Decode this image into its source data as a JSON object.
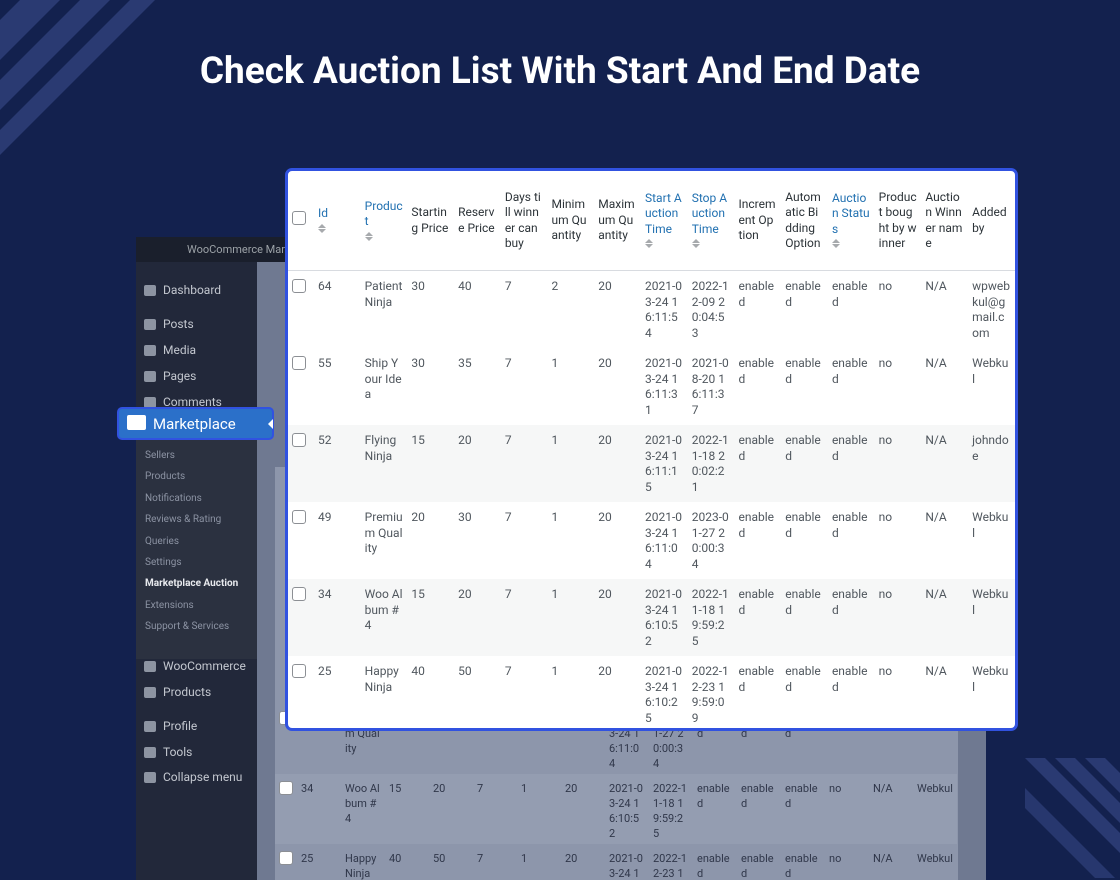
{
  "header": {
    "title": "Check Auction List With Start And End Date"
  },
  "admin_bar": {
    "site": "WooCommerce Marketplace"
  },
  "sidebar": {
    "top": [
      "Dashboard"
    ],
    "content": [
      "Posts",
      "Media",
      "Pages",
      "Comments"
    ],
    "active": "Marketplace",
    "submenu": [
      "Sellers",
      "Products",
      "Notifications",
      "Reviews & Rating",
      "Queries",
      "Settings",
      "Marketplace Auction",
      "Extensions",
      "Support & Services"
    ],
    "current_submenu": 6,
    "shop": [
      "WooCommerce",
      "Products"
    ],
    "user": [
      "Profile",
      "Tools",
      "Collapse menu"
    ]
  },
  "table": {
    "headers": [
      "Id",
      "Product",
      "Starting Price",
      "Reserve Price",
      "Days till winner can buy",
      "Minimum Quantity",
      "Maximum Quantity",
      "Start Auction Time",
      "Stop Auction Time",
      "Increment Option",
      "Automatic Bidding Option",
      "Auction Status",
      "Product bought by winner",
      "Auction Winner name",
      "Added by"
    ],
    "sortable": [
      true,
      true,
      false,
      false,
      false,
      false,
      false,
      true,
      true,
      false,
      false,
      true,
      false,
      false,
      false
    ],
    "rows": [
      [
        64,
        "Patient Ninja",
        30,
        40,
        7,
        2,
        20,
        "2021-03-24 16:11:54",
        "2022-12-09 20:04:53",
        "enabled",
        "enabled",
        "enabled",
        "no",
        "N/A",
        "wpwebkul@gmail.com"
      ],
      [
        55,
        "Ship Your Idea",
        30,
        35,
        7,
        1,
        20,
        "2021-03-24 16:11:31",
        "2021-08-20 16:11:37",
        "enabled",
        "enabled",
        "enabled",
        "no",
        "N/A",
        "Webkul"
      ],
      [
        52,
        "Flying Ninja",
        15,
        20,
        7,
        1,
        20,
        "2021-03-24 16:11:15",
        "2022-11-18 20:02:21",
        "enabled",
        "enabled",
        "enabled",
        "no",
        "N/A",
        "johndoe"
      ],
      [
        49,
        "Premium Quality",
        20,
        30,
        7,
        1,
        20,
        "2021-03-24 16:11:04",
        "2023-01-27 20:00:34",
        "enabled",
        "enabled",
        "enabled",
        "no",
        "N/A",
        "Webkul"
      ],
      [
        34,
        "Woo Album #4",
        15,
        20,
        7,
        1,
        20,
        "2021-03-24 16:10:52",
        "2022-11-18 19:59:25",
        "enabled",
        "enabled",
        "enabled",
        "no",
        "N/A",
        "Webkul"
      ],
      [
        25,
        "Happy Ninja",
        40,
        50,
        7,
        1,
        20,
        "2021-03-24 16:10:25",
        "2022-12-23 19:59:09",
        "enabled",
        "enabled",
        "enabled",
        "no",
        "N/A",
        "Webkul"
      ]
    ]
  }
}
